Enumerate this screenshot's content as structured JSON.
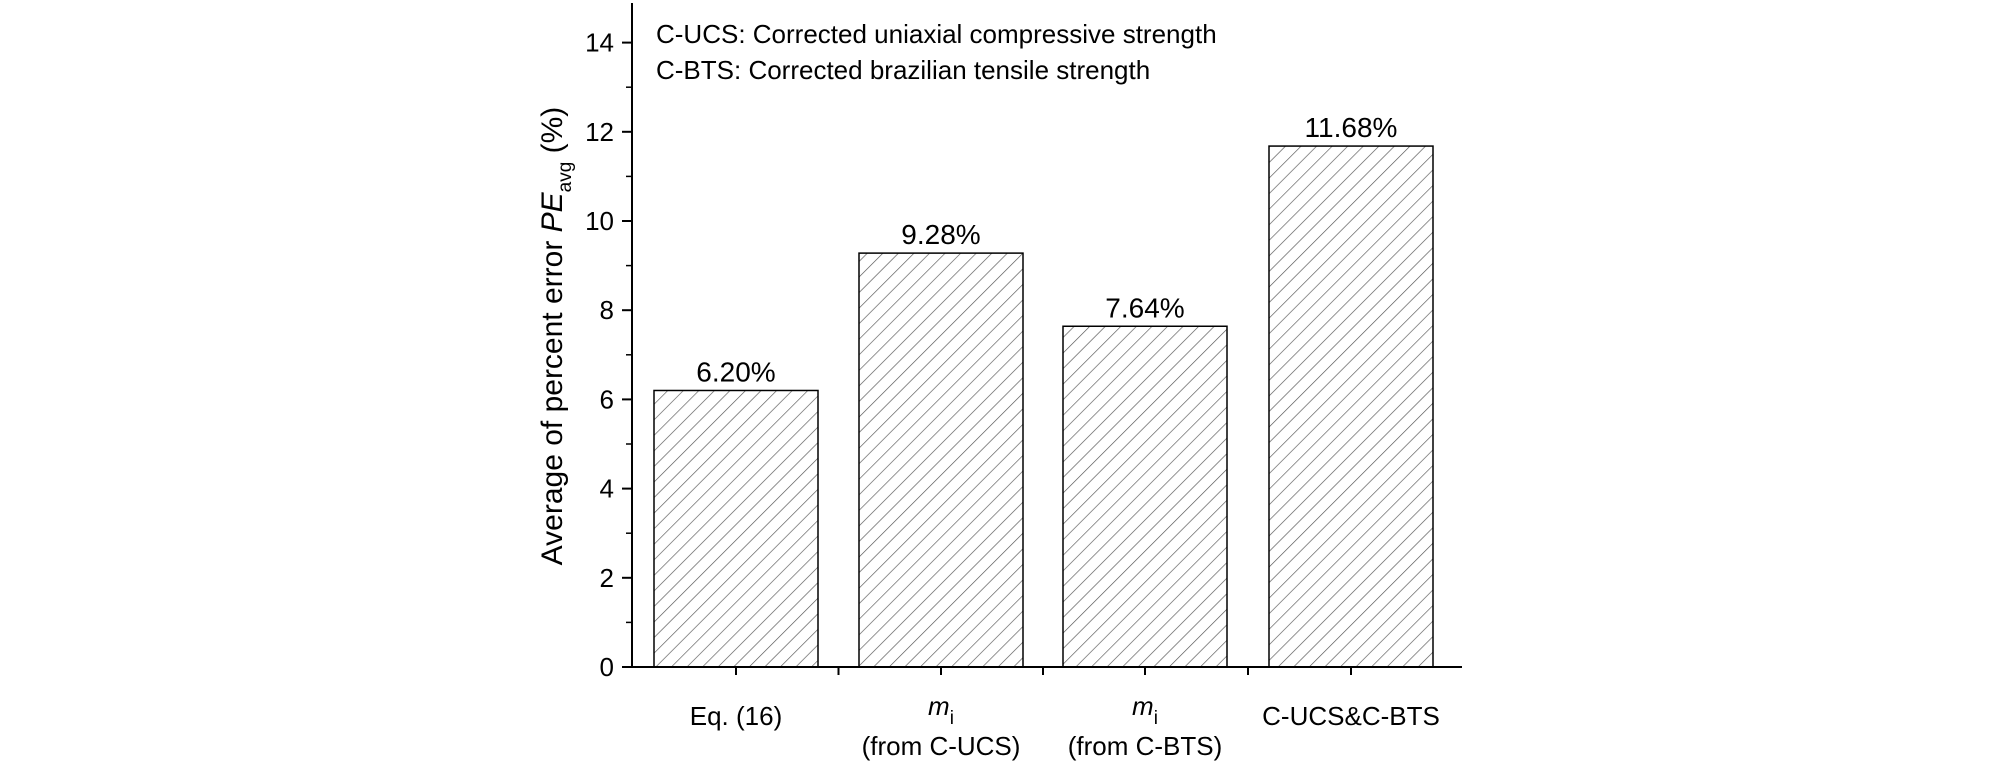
{
  "chart_data": {
    "type": "bar",
    "categories": [
      {
        "line1": "Eq. (16)",
        "italic_main": "",
        "subscript": "",
        "line2": ""
      },
      {
        "line1": "",
        "italic_main": "m",
        "subscript": "i",
        "line2": "(from C-UCS)"
      },
      {
        "line1": "",
        "italic_main": "m",
        "subscript": "i",
        "line2": "(from C-BTS)"
      },
      {
        "line1": "C-UCS&C-BTS",
        "italic_main": "",
        "subscript": "",
        "line2": ""
      }
    ],
    "values": [
      6.2,
      9.28,
      7.64,
      11.68
    ],
    "data_labels": [
      "6.20%",
      "9.28%",
      "7.64%",
      "11.68%"
    ],
    "ylabel": {
      "prefix": "Average of percent error ",
      "italic": "PE",
      "subscript": "avg",
      "suffix": " (%)"
    },
    "ylim": [
      0,
      15
    ],
    "yticks": [
      0,
      2,
      4,
      6,
      8,
      10,
      12,
      14
    ],
    "yticks_minor": [
      1,
      3,
      5,
      7,
      9,
      11,
      13
    ],
    "annotations": [
      "C-UCS: Corrected uniaxial compressive strength",
      "C-BTS: Corrected brazilian tensile strength"
    ],
    "bar_pattern": "diagonal-hatch",
    "grid": false,
    "bar_fill": "#ffffff",
    "hatch_color": "#555555",
    "axis_color": "#000000"
  }
}
